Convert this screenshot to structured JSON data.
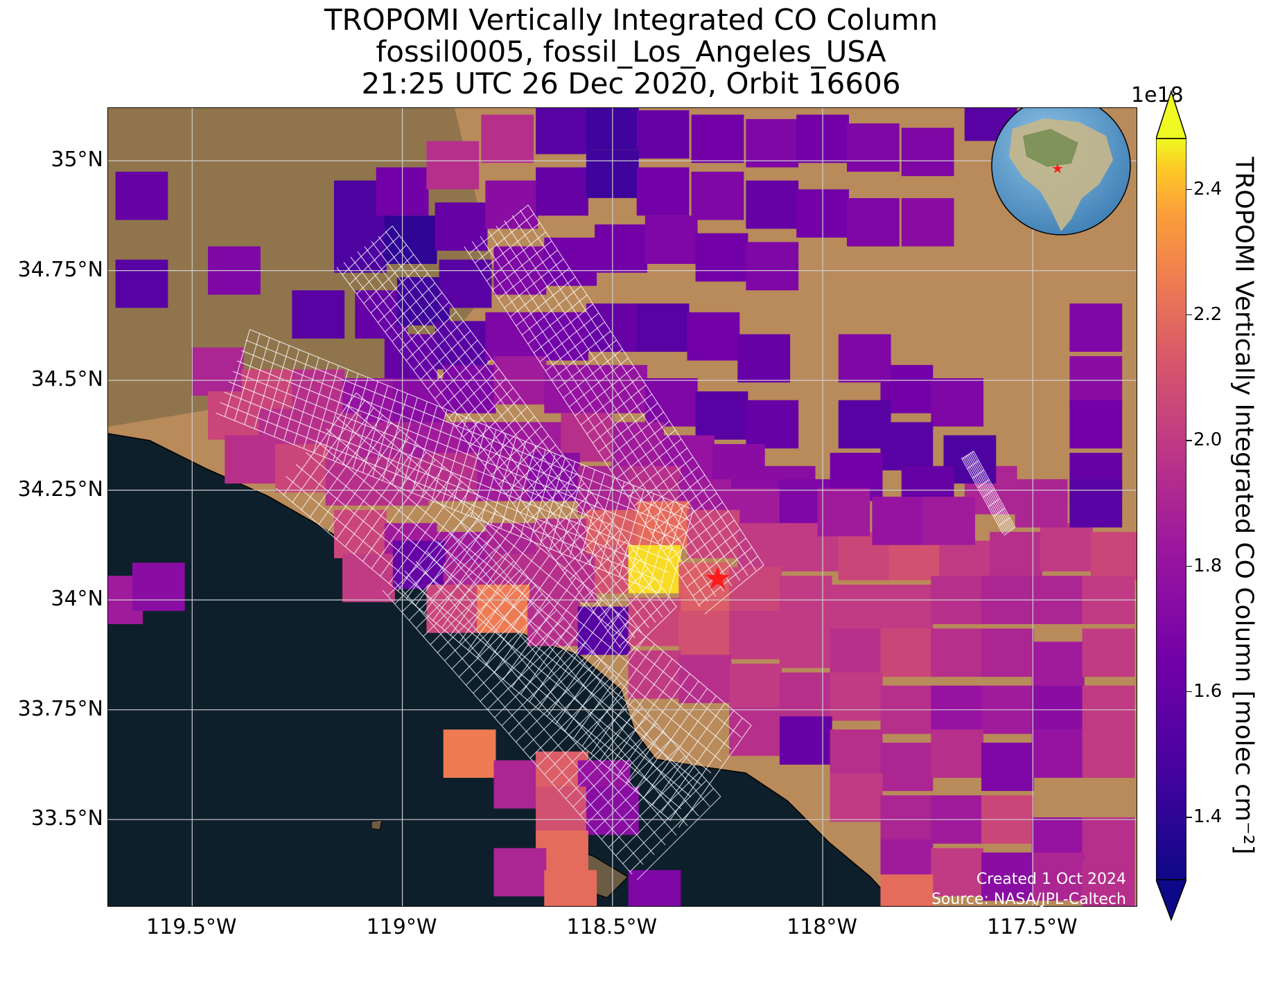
{
  "title": {
    "line1": "TROPOMI Vertically Integrated CO Column",
    "line2": "fossil0005, fossil_Los_Angeles_USA",
    "line3": "21:25 UTC 26 Dec 2020, Orbit 16606"
  },
  "map": {
    "lon_range": [
      -119.7,
      -117.25
    ],
    "lat_range": [
      33.3,
      35.12
    ],
    "lat_ticks": [
      "35°N",
      "34.75°N",
      "34.5°N",
      "34.25°N",
      "34°N",
      "33.75°N",
      "33.5°N"
    ],
    "lat_tick_values": [
      35.0,
      34.75,
      34.5,
      34.25,
      34.0,
      33.75,
      33.5
    ],
    "lon_ticks": [
      "119.5°W",
      "119°W",
      "118.5°W",
      "118°W",
      "117.5°W"
    ],
    "lon_tick_values": [
      -119.5,
      -119.0,
      -118.5,
      -118.0,
      -117.5
    ],
    "grid": true,
    "target_marker": {
      "lon": -118.25,
      "lat": 34.05,
      "color": "#ff1a1a",
      "shape": "star"
    },
    "inset_globe": {
      "position": "top-right",
      "marker_color": "#ff1a1a"
    },
    "background": "satellite imagery"
  },
  "credits": {
    "created": "Created 1 Oct 2024",
    "source": "Source: NASA/JPL-Caltech"
  },
  "colorbar": {
    "label": "TROPOMI Vertically Integrated CO Column [molec cm⁻²]",
    "exponent": "1e18",
    "colormap": "plasma",
    "range": [
      1.3,
      2.48
    ],
    "ticks": [
      "1.4",
      "1.6",
      "1.8",
      "2.0",
      "2.2",
      "2.4"
    ],
    "tick_values": [
      1.4,
      1.6,
      1.8,
      2.0,
      2.2,
      2.4
    ],
    "extend": "both"
  },
  "chart_data": {
    "type": "heatmap",
    "units": "1e18 molec cm^-2",
    "cell_width_deg": [
      0.125,
      0.11
    ],
    "pixels": [
      [
        -119.62,
        34.92,
        1.6
      ],
      [
        -119.62,
        34.72,
        1.55
      ],
      [
        -119.4,
        34.75,
        1.7
      ],
      [
        -119.1,
        34.9,
        1.5
      ],
      [
        -119.0,
        34.93,
        1.65
      ],
      [
        -118.88,
        34.99,
        1.95
      ],
      [
        -118.75,
        35.05,
        1.95
      ],
      [
        -118.62,
        35.07,
        1.55
      ],
      [
        -118.5,
        35.08,
        1.45
      ],
      [
        -118.38,
        35.06,
        1.6
      ],
      [
        -118.25,
        35.05,
        1.65
      ],
      [
        -118.12,
        35.04,
        1.7
      ],
      [
        -118.0,
        35.05,
        1.65
      ],
      [
        -117.88,
        35.03,
        1.7
      ],
      [
        -117.75,
        35.02,
        1.7
      ],
      [
        -117.6,
        35.1,
        1.55
      ],
      [
        -119.1,
        34.8,
        1.5
      ],
      [
        -118.98,
        34.82,
        1.4
      ],
      [
        -118.86,
        34.85,
        1.6
      ],
      [
        -118.74,
        34.9,
        1.75
      ],
      [
        -118.62,
        34.93,
        1.6
      ],
      [
        -118.5,
        34.97,
        1.45
      ],
      [
        -118.38,
        34.93,
        1.65
      ],
      [
        -118.25,
        34.92,
        1.7
      ],
      [
        -118.12,
        34.9,
        1.6
      ],
      [
        -118.0,
        34.88,
        1.65
      ],
      [
        -117.88,
        34.86,
        1.7
      ],
      [
        -117.75,
        34.86,
        1.75
      ],
      [
        -119.05,
        34.65,
        1.6
      ],
      [
        -118.95,
        34.68,
        1.45
      ],
      [
        -118.85,
        34.72,
        1.55
      ],
      [
        -118.72,
        34.75,
        1.7
      ],
      [
        -118.6,
        34.77,
        1.65
      ],
      [
        -118.48,
        34.8,
        1.65
      ],
      [
        -118.36,
        34.82,
        1.7
      ],
      [
        -118.24,
        34.78,
        1.65
      ],
      [
        -118.12,
        34.76,
        1.7
      ],
      [
        -119.2,
        34.65,
        1.55
      ],
      [
        -118.98,
        34.55,
        1.6
      ],
      [
        -118.86,
        34.58,
        1.55
      ],
      [
        -118.74,
        34.6,
        1.7
      ],
      [
        -118.62,
        34.6,
        1.65
      ],
      [
        -118.5,
        34.62,
        1.6
      ],
      [
        -118.38,
        34.62,
        1.55
      ],
      [
        -118.26,
        34.6,
        1.65
      ],
      [
        -118.14,
        34.55,
        1.6
      ],
      [
        -119.44,
        34.52,
        1.9
      ],
      [
        -119.32,
        34.47,
        2.05
      ],
      [
        -119.2,
        34.47,
        1.95
      ],
      [
        -119.08,
        34.45,
        1.8
      ],
      [
        -118.96,
        34.45,
        1.75
      ],
      [
        -118.84,
        34.48,
        1.7
      ],
      [
        -118.72,
        34.5,
        1.85
      ],
      [
        -118.6,
        34.48,
        1.8
      ],
      [
        -118.48,
        34.48,
        1.8
      ],
      [
        -118.36,
        34.45,
        1.7
      ],
      [
        -118.24,
        34.42,
        1.55
      ],
      [
        -118.12,
        34.4,
        1.6
      ],
      [
        -119.4,
        34.42,
        2.05
      ],
      [
        -119.28,
        34.38,
        1.95
      ],
      [
        -119.16,
        34.37,
        1.95
      ],
      [
        -119.04,
        34.35,
        1.9
      ],
      [
        -118.92,
        34.35,
        1.85
      ],
      [
        -118.8,
        34.35,
        1.8
      ],
      [
        -118.68,
        34.35,
        1.85
      ],
      [
        -118.56,
        34.37,
        1.95
      ],
      [
        -118.44,
        34.35,
        1.85
      ],
      [
        -118.32,
        34.32,
        1.8
      ],
      [
        -118.2,
        34.3,
        1.75
      ],
      [
        -118.08,
        34.25,
        1.75
      ],
      [
        -119.36,
        34.32,
        1.95
      ],
      [
        -119.24,
        34.3,
        2.05
      ],
      [
        -119.12,
        34.27,
        1.95
      ],
      [
        -119.0,
        34.27,
        1.95
      ],
      [
        -118.88,
        34.28,
        1.95
      ],
      [
        -118.76,
        34.28,
        1.85
      ],
      [
        -118.64,
        34.28,
        1.75
      ],
      [
        -118.52,
        34.25,
        1.9
      ],
      [
        -118.4,
        34.25,
        1.95
      ],
      [
        -118.28,
        34.22,
        1.85
      ],
      [
        -118.16,
        34.2,
        1.85
      ],
      [
        -118.04,
        34.22,
        1.7
      ],
      [
        -119.1,
        34.15,
        2.05
      ],
      [
        -118.98,
        34.12,
        1.85
      ],
      [
        -118.86,
        34.1,
        1.85
      ],
      [
        -118.74,
        34.12,
        1.9
      ],
      [
        -118.62,
        34.13,
        1.95
      ],
      [
        -118.5,
        34.15,
        2.15
      ],
      [
        -118.38,
        34.17,
        2.2
      ],
      [
        -118.26,
        34.15,
        2.05
      ],
      [
        -118.14,
        34.12,
        2.0
      ],
      [
        -118.02,
        34.12,
        2.0
      ],
      [
        -117.9,
        34.1,
        2.05
      ],
      [
        -117.78,
        34.1,
        2.1
      ],
      [
        -117.66,
        34.08,
        2.0
      ],
      [
        -117.54,
        34.1,
        1.95
      ],
      [
        -117.42,
        34.12,
        2.0
      ],
      [
        -117.3,
        34.1,
        2.05
      ],
      [
        -119.08,
        34.05,
        2.0
      ],
      [
        -118.96,
        34.08,
        1.6
      ],
      [
        -118.84,
        34.03,
        1.9
      ],
      [
        -118.72,
        34.05,
        1.95
      ],
      [
        -118.6,
        34.05,
        1.95
      ],
      [
        -118.48,
        34.07,
        2.1
      ],
      [
        -118.4,
        34.07,
        2.45
      ],
      [
        -118.28,
        34.03,
        2.15
      ],
      [
        -118.16,
        34.02,
        2.05
      ],
      [
        -118.04,
        34.0,
        2.0
      ],
      [
        -117.92,
        33.98,
        2.0
      ],
      [
        -117.8,
        33.98,
        2.0
      ],
      [
        -117.68,
        34.0,
        1.95
      ],
      [
        -117.56,
        34.0,
        1.9
      ],
      [
        -117.44,
        34.0,
        1.9
      ],
      [
        -117.32,
        34.0,
        2.0
      ],
      [
        -119.68,
        34.0,
        1.85
      ],
      [
        -119.58,
        34.03,
        1.75
      ],
      [
        -118.88,
        33.98,
        2.05
      ],
      [
        -118.76,
        33.98,
        2.25
      ],
      [
        -118.64,
        33.95,
        1.95
      ],
      [
        -118.52,
        33.93,
        1.55
      ],
      [
        -118.4,
        33.95,
        2.05
      ],
      [
        -118.28,
        33.92,
        2.1
      ],
      [
        -118.16,
        33.92,
        2.0
      ],
      [
        -118.04,
        33.9,
        2.0
      ],
      [
        -117.92,
        33.88,
        1.95
      ],
      [
        -117.8,
        33.88,
        2.05
      ],
      [
        -117.68,
        33.88,
        1.95
      ],
      [
        -117.56,
        33.88,
        1.9
      ],
      [
        -117.44,
        33.85,
        1.85
      ],
      [
        -117.32,
        33.88,
        2.0
      ],
      [
        -118.4,
        33.83,
        2.0
      ],
      [
        -118.28,
        33.82,
        1.95
      ],
      [
        -118.16,
        33.8,
        2.0
      ],
      [
        -118.04,
        33.78,
        1.95
      ],
      [
        -117.92,
        33.78,
        2.0
      ],
      [
        -117.8,
        33.75,
        1.95
      ],
      [
        -117.68,
        33.75,
        1.8
      ],
      [
        -117.56,
        33.75,
        1.85
      ],
      [
        -117.44,
        33.75,
        1.75
      ],
      [
        -117.32,
        33.75,
        2.0
      ],
      [
        -118.16,
        33.7,
        1.95
      ],
      [
        -118.04,
        33.68,
        1.6
      ],
      [
        -117.92,
        33.65,
        1.95
      ],
      [
        -117.8,
        33.62,
        1.9
      ],
      [
        -117.68,
        33.65,
        1.95
      ],
      [
        -117.56,
        33.62,
        1.7
      ],
      [
        -117.44,
        33.65,
        1.8
      ],
      [
        -117.32,
        33.65,
        2.0
      ],
      [
        -118.84,
        33.65,
        2.25
      ],
      [
        -118.72,
        33.58,
        1.9
      ],
      [
        -118.62,
        33.6,
        2.15
      ],
      [
        -118.52,
        33.58,
        1.8
      ],
      [
        -118.62,
        33.52,
        2.1
      ],
      [
        -118.5,
        33.52,
        1.75
      ],
      [
        -118.62,
        33.42,
        2.2
      ],
      [
        -118.72,
        33.38,
        1.9
      ],
      [
        -118.6,
        33.33,
        2.2
      ],
      [
        -118.4,
        33.33,
        1.7
      ],
      [
        -117.92,
        33.55,
        2.0
      ],
      [
        -117.8,
        33.5,
        1.9
      ],
      [
        -117.68,
        33.5,
        1.85
      ],
      [
        -117.56,
        33.5,
        2.05
      ],
      [
        -117.44,
        33.45,
        1.8
      ],
      [
        -117.32,
        33.45,
        1.95
      ],
      [
        -117.8,
        33.4,
        1.85
      ],
      [
        -117.68,
        33.38,
        2.0
      ],
      [
        -117.56,
        33.37,
        1.75
      ],
      [
        -117.44,
        33.37,
        1.9
      ],
      [
        -117.32,
        33.35,
        1.95
      ],
      [
        -117.8,
        33.32,
        2.2
      ],
      [
        -117.35,
        34.62,
        1.7
      ],
      [
        -117.35,
        34.5,
        1.75
      ],
      [
        -117.35,
        34.4,
        1.65
      ],
      [
        -117.35,
        34.28,
        1.6
      ],
      [
        -117.6,
        34.25,
        1.9
      ],
      [
        -117.48,
        34.22,
        1.9
      ],
      [
        -117.35,
        34.22,
        1.55
      ],
      [
        -117.8,
        34.48,
        1.65
      ],
      [
        -117.68,
        34.45,
        1.7
      ],
      [
        -117.9,
        34.55,
        1.7
      ],
      [
        -117.8,
        34.35,
        1.55
      ],
      [
        -117.65,
        34.32,
        1.5
      ],
      [
        -117.75,
        34.25,
        1.6
      ],
      [
        -117.9,
        34.4,
        1.55
      ],
      [
        -117.92,
        34.28,
        1.65
      ],
      [
        -117.95,
        34.2,
        1.85
      ],
      [
        -117.82,
        34.18,
        1.8
      ],
      [
        -117.7,
        34.18,
        1.85
      ]
    ],
    "target_lon": -118.25,
    "target_lat": 34.05
  }
}
